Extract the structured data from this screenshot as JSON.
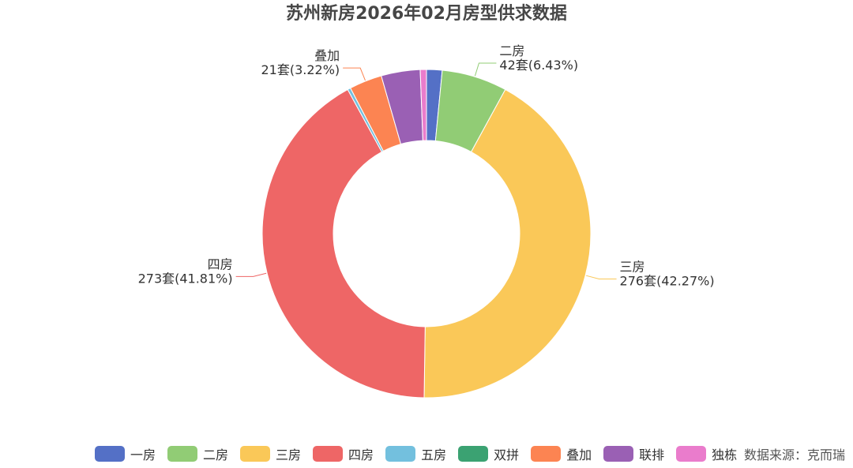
{
  "title": "苏州新房2026年02月房型供求数据",
  "source": "数据来源：克而瑞",
  "chart_data": {
    "type": "pie",
    "donut": true,
    "unit": "套",
    "categories": [
      "一房",
      "二房",
      "三房",
      "四房",
      "五房",
      "双拼",
      "叠加",
      "联排",
      "独栋"
    ],
    "values": [
      10,
      42,
      276,
      273,
      2,
      0,
      21,
      25,
      4
    ],
    "colors": [
      "#5470c6",
      "#91cc75",
      "#fac858",
      "#ee6666",
      "#73c0de",
      "#3ba272",
      "#fc8452",
      "#9a60b4",
      "#ea7ccc"
    ],
    "labels": [
      {
        "category": "二房",
        "text": "42套(6.43%)"
      },
      {
        "category": "三房",
        "text": "276套(42.27%)"
      },
      {
        "category": "四房",
        "text": "273套(41.81%)"
      },
      {
        "category": "叠加",
        "text": "21套(3.22%)"
      }
    ],
    "legend_position": "bottom"
  }
}
